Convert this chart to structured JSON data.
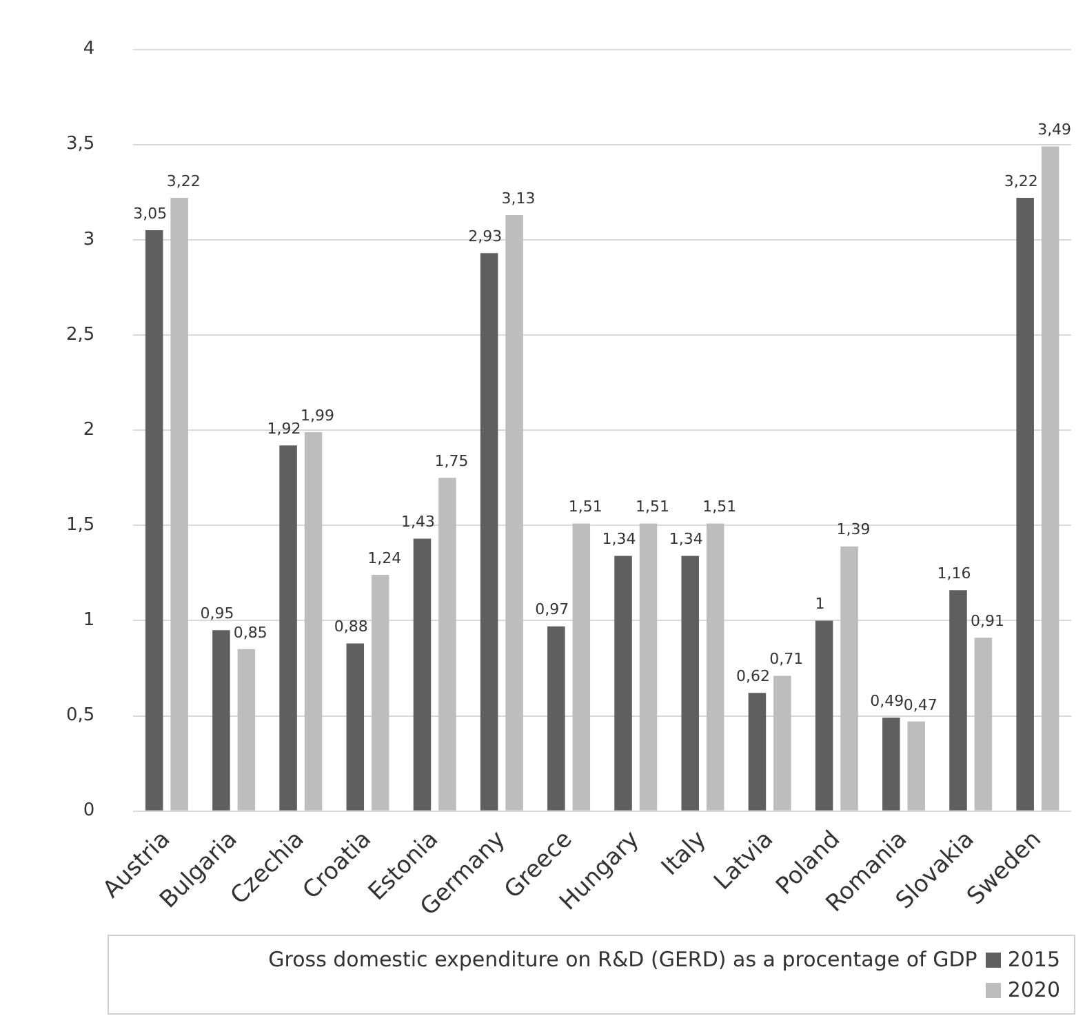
{
  "chart_data": {
    "type": "bar",
    "legend_title": "Gross domestic expenditure on R&D (GERD) as a procentage of GDP",
    "categories": [
      "Austria",
      "Bulgaria",
      "Czechia",
      "Croatia",
      "Estonia",
      "Germany",
      "Greece",
      "Hungary",
      "Italy",
      "Latvia",
      "Poland",
      "Romania",
      "Slovakia",
      "Sweden"
    ],
    "series": [
      {
        "name": "2015",
        "color": "#5f5f5f",
        "values": [
          3.05,
          0.95,
          1.92,
          0.88,
          1.43,
          2.93,
          0.97,
          1.34,
          1.34,
          0.62,
          1,
          0.49,
          1.16,
          3.22
        ],
        "value_labels": [
          "3,05",
          "0,95",
          "1,92",
          "0,88",
          "1,43",
          "2,93",
          "0,97",
          "1,34",
          "1,34",
          "0,62",
          "1",
          "0,49",
          "1,16",
          "3,22"
        ]
      },
      {
        "name": "2020",
        "color": "#bdbdbd",
        "values": [
          3.22,
          0.85,
          1.99,
          1.24,
          1.75,
          3.13,
          1.51,
          1.51,
          1.51,
          0.71,
          1.39,
          0.47,
          0.91,
          3.49
        ],
        "value_labels": [
          "3,22",
          "0,85",
          "1,99",
          "1,24",
          "1,75",
          "3,13",
          "1,51",
          "1,51",
          "1,51",
          "0,71",
          "1,39",
          "0,47",
          "0,91",
          "3,49"
        ]
      }
    ],
    "ylim": [
      0,
      4
    ],
    "yticks": [
      0,
      {
        "value": 0.5,
        "label": "0,5"
      },
      1,
      {
        "value": 1.5,
        "label": "1,5"
      },
      2,
      {
        "value": 2.5,
        "label": "2,5"
      },
      3,
      {
        "value": 3.5,
        "label": "3,5"
      },
      4
    ],
    "grid": "y",
    "legend": "bottom"
  }
}
